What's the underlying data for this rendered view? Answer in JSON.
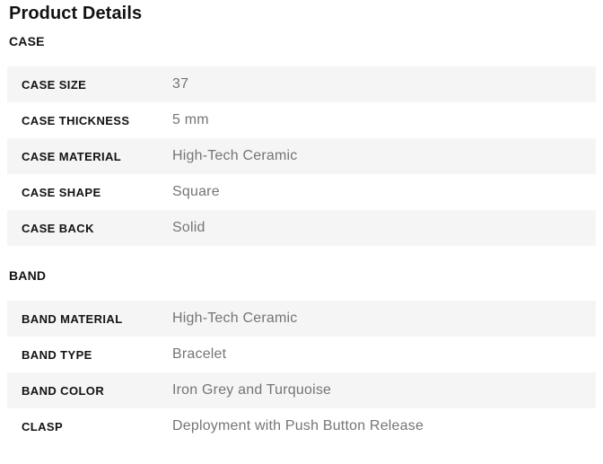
{
  "page": {
    "title": "Product Details"
  },
  "sections": [
    {
      "heading": "CASE",
      "rows": [
        {
          "label": "CASE SIZE",
          "value": "37"
        },
        {
          "label": "CASE THICKNESS",
          "value": "5 mm"
        },
        {
          "label": "CASE MATERIAL",
          "value": "High-Tech Ceramic"
        },
        {
          "label": "CASE SHAPE",
          "value": "Square"
        },
        {
          "label": "CASE BACK",
          "value": "Solid"
        }
      ]
    },
    {
      "heading": "BAND",
      "rows": [
        {
          "label": "BAND MATERIAL",
          "value": "High-Tech Ceramic"
        },
        {
          "label": "BAND TYPE",
          "value": "Bracelet"
        },
        {
          "label": "BAND COLOR",
          "value": "Iron Grey and Turquoise"
        },
        {
          "label": "CLASP",
          "value": "Deployment with Push Button Release"
        }
      ]
    }
  ],
  "colors": {
    "background": "#ffffff",
    "row_stripe": "#f5f5f5",
    "heading_text": "#121212",
    "label_text": "#121212",
    "value_text": "#757575"
  }
}
